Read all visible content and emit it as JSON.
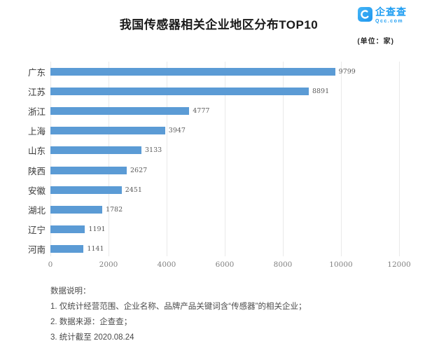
{
  "page": {
    "title": "我国传感器相关企业地区分布TOP10",
    "unit_label": "(单位：家)"
  },
  "logo": {
    "name": "企查查",
    "domain": "Qcc.com",
    "brand_color": "#1e9df2"
  },
  "chart_data": {
    "type": "bar",
    "orientation": "horizontal",
    "title": "我国传感器相关企业地区分布TOP10",
    "unit": "家",
    "categories": [
      "广东",
      "江苏",
      "浙江",
      "上海",
      "山东",
      "陕西",
      "安徽",
      "湖北",
      "辽宁",
      "河南"
    ],
    "values": [
      9799,
      8891,
      4777,
      3947,
      3133,
      2627,
      2451,
      1782,
      1191,
      1141
    ],
    "x_ticks": [
      0,
      2000,
      4000,
      6000,
      8000,
      10000,
      12000
    ],
    "xlim": [
      0,
      12000
    ],
    "bar_color": "#5b9bd5",
    "grid": true,
    "legend": false,
    "value_labels": true
  },
  "notes": {
    "heading": "数据说明：",
    "line1": "1. 仅统计经营范围、企业名称、品牌产品关键词含“传感器”的相关企业；",
    "line2": "2. 数据来源：企查查；",
    "line3": "3. 统计截至 2020.08.24"
  }
}
